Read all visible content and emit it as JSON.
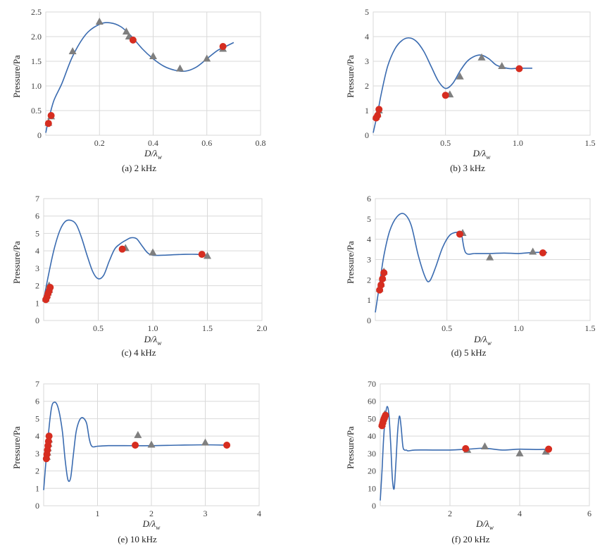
{
  "figure": {
    "colors": {
      "curve": "#3a6bb0",
      "circle": "#d62d20",
      "triangle": "#7f7f7f",
      "grid": "#d9d9d9"
    }
  },
  "chart_data": [
    {
      "type": "line",
      "caption": "(a) 2 kHz",
      "xlabel": "D/λ",
      "xlabel_sub": "w",
      "ylabel": "Pressure/Pa",
      "xlim": [
        0,
        0.8
      ],
      "ylim": [
        0,
        2.5
      ],
      "xticks": [
        0.2,
        0.4,
        0.6,
        0.8
      ],
      "xtick_labels": [
        "0.2",
        "0.4",
        "0.6",
        "0.8"
      ],
      "yticks": [
        0,
        0.5,
        1.0,
        1.5,
        2.0,
        2.5
      ],
      "ytick_labels": [
        "0",
        "0.5",
        "1.0",
        "1.5",
        "2.0",
        "2.5"
      ],
      "series": [
        {
          "name": "curve",
          "kind": "line",
          "x": [
            0,
            0.01,
            0.03,
            0.06,
            0.1,
            0.15,
            0.2,
            0.24,
            0.28,
            0.32,
            0.36,
            0.4,
            0.44,
            0.48,
            0.52,
            0.56,
            0.6,
            0.64,
            0.67,
            0.7
          ],
          "y": [
            0.05,
            0.3,
            0.7,
            1.05,
            1.6,
            2.05,
            2.25,
            2.28,
            2.2,
            2.0,
            1.75,
            1.55,
            1.4,
            1.32,
            1.3,
            1.38,
            1.55,
            1.72,
            1.8,
            1.88
          ]
        },
        {
          "name": "circle",
          "kind": "circle",
          "x": [
            0.01,
            0.02,
            0.325,
            0.66
          ],
          "y": [
            0.24,
            0.4,
            1.93,
            1.8
          ]
        },
        {
          "name": "triangle",
          "kind": "triangle",
          "x": [
            0.01,
            0.02,
            0.1,
            0.2,
            0.3,
            0.31,
            0.4,
            0.5,
            0.6,
            0.66
          ],
          "y": [
            0.25,
            0.38,
            1.7,
            2.3,
            2.1,
            2.0,
            1.6,
            1.35,
            1.55,
            1.75
          ]
        }
      ]
    },
    {
      "type": "line",
      "caption": "(b) 3 kHz",
      "xlabel": "D/λ",
      "xlabel_sub": "w",
      "ylabel": "Pressure/Pa",
      "xlim": [
        0,
        1.5
      ],
      "ylim": [
        0,
        5
      ],
      "xticks": [
        0.5,
        1.0,
        1.5
      ],
      "xtick_labels": [
        "0.5",
        "1.0",
        "1.5"
      ],
      "yticks": [
        0,
        1,
        2,
        3,
        4,
        5
      ],
      "ytick_labels": [
        "0",
        "1",
        "2",
        "3",
        "4",
        "5"
      ],
      "series": [
        {
          "name": "curve",
          "kind": "line",
          "x": [
            0,
            0.03,
            0.06,
            0.1,
            0.15,
            0.2,
            0.25,
            0.3,
            0.35,
            0.4,
            0.45,
            0.5,
            0.55,
            0.6,
            0.65,
            0.7,
            0.75,
            0.8,
            0.85,
            0.9,
            0.95,
            1.0,
            1.05,
            1.1
          ],
          "y": [
            0.1,
            0.9,
            1.8,
            2.8,
            3.5,
            3.85,
            3.95,
            3.8,
            3.4,
            2.8,
            2.2,
            1.9,
            2.1,
            2.6,
            3.0,
            3.2,
            3.25,
            3.1,
            2.85,
            2.75,
            2.7,
            2.72,
            2.72,
            2.72
          ]
        },
        {
          "name": "circle",
          "kind": "circle",
          "x": [
            0.02,
            0.03,
            0.04,
            0.5,
            1.01
          ],
          "y": [
            0.7,
            0.8,
            1.05,
            1.62,
            2.7
          ]
        },
        {
          "name": "triangle",
          "kind": "triangle",
          "x": [
            0.02,
            0.03,
            0.04,
            0.53,
            0.6,
            0.75,
            0.89
          ],
          "y": [
            0.75,
            0.85,
            1.0,
            1.65,
            2.38,
            3.15,
            2.8
          ]
        }
      ]
    },
    {
      "type": "line",
      "caption": "(c) 4 kHz",
      "xlabel": "D/λ",
      "xlabel_sub": "w",
      "ylabel": "Pressure/Pa",
      "xlim": [
        0,
        2.0
      ],
      "ylim": [
        0,
        7
      ],
      "xticks": [
        0.5,
        1.0,
        1.5,
        2.0
      ],
      "xtick_labels": [
        "0.5",
        "1.0",
        "1.5",
        "2.0"
      ],
      "yticks": [
        0,
        1,
        2,
        3,
        4,
        5,
        6,
        7
      ],
      "ytick_labels": [
        "0",
        "1",
        "2",
        "3",
        "4",
        "5",
        "6",
        "7"
      ],
      "series": [
        {
          "name": "curve",
          "kind": "line",
          "x": [
            0,
            0.05,
            0.1,
            0.15,
            0.2,
            0.25,
            0.3,
            0.35,
            0.4,
            0.45,
            0.5,
            0.55,
            0.6,
            0.65,
            0.7,
            0.75,
            0.8,
            0.85,
            0.9,
            0.95,
            1.0,
            1.1,
            1.2,
            1.3,
            1.4,
            1.5
          ],
          "y": [
            1.2,
            2.8,
            4.2,
            5.2,
            5.7,
            5.75,
            5.5,
            4.7,
            3.7,
            2.8,
            2.4,
            2.6,
            3.4,
            4.1,
            4.4,
            4.6,
            4.75,
            4.7,
            4.3,
            3.9,
            3.75,
            3.75,
            3.78,
            3.8,
            3.8,
            3.75
          ]
        },
        {
          "name": "circle",
          "kind": "circle",
          "x": [
            0.02,
            0.03,
            0.04,
            0.05,
            0.06,
            0.72,
            1.45
          ],
          "y": [
            1.2,
            1.35,
            1.55,
            1.7,
            1.9,
            4.1,
            3.8
          ]
        },
        {
          "name": "triangle",
          "kind": "triangle",
          "x": [
            0.02,
            0.03,
            0.04,
            0.05,
            0.05,
            0.75,
            1.0,
            1.5
          ],
          "y": [
            1.25,
            1.45,
            1.6,
            1.75,
            2.0,
            4.15,
            3.9,
            3.7
          ]
        }
      ]
    },
    {
      "type": "line",
      "caption": "(d) 5 kHz",
      "xlabel": "D/λ",
      "xlabel_sub": "w",
      "ylabel": "Pressure/Pa",
      "xlim": [
        0,
        1.5
      ],
      "ylim": [
        0,
        6
      ],
      "xticks": [
        0.5,
        1.0,
        1.5
      ],
      "xtick_labels": [
        "0.5",
        "1.0",
        "1.5"
      ],
      "yticks": [
        0,
        1,
        2,
        3,
        4,
        5,
        6
      ],
      "ytick_labels": [
        "0",
        "1",
        "2",
        "3",
        "4",
        "5",
        "6"
      ],
      "series": [
        {
          "name": "curve",
          "kind": "line",
          "x": [
            0,
            0.03,
            0.06,
            0.1,
            0.15,
            0.2,
            0.25,
            0.3,
            0.35,
            0.38,
            0.42,
            0.47,
            0.52,
            0.57,
            0.6,
            0.63,
            0.7,
            0.8,
            0.9,
            1.0,
            1.1,
            1.2
          ],
          "y": [
            0.4,
            1.8,
            3.2,
            4.4,
            5.1,
            5.25,
            4.7,
            3.2,
            2.1,
            1.95,
            2.6,
            3.6,
            4.2,
            4.35,
            4.3,
            3.35,
            3.3,
            3.3,
            3.32,
            3.3,
            3.35,
            3.35
          ]
        },
        {
          "name": "circle",
          "kind": "circle",
          "x": [
            0.03,
            0.04,
            0.05,
            0.06,
            0.59,
            1.17
          ],
          "y": [
            1.5,
            1.75,
            2.05,
            2.35,
            4.25,
            3.33
          ]
        },
        {
          "name": "triangle",
          "kind": "triangle",
          "x": [
            0.03,
            0.04,
            0.05,
            0.06,
            0.61,
            0.8,
            1.1
          ],
          "y": [
            1.55,
            1.8,
            2.1,
            2.4,
            4.3,
            3.1,
            3.38
          ]
        }
      ]
    },
    {
      "type": "line",
      "caption": "(e) 10 kHz",
      "xlabel": "D/λ",
      "xlabel_sub": "w",
      "ylabel": "Pressure/Pa",
      "xlim": [
        0,
        4
      ],
      "ylim": [
        0,
        7
      ],
      "xticks": [
        1,
        2,
        3,
        4
      ],
      "xtick_labels": [
        "1",
        "2",
        "3",
        "4"
      ],
      "yticks": [
        0,
        1,
        2,
        3,
        4,
        5,
        6,
        7
      ],
      "ytick_labels": [
        "0",
        "1",
        "2",
        "3",
        "4",
        "5",
        "6",
        "7"
      ],
      "series": [
        {
          "name": "curve",
          "kind": "line",
          "x": [
            0,
            0.05,
            0.1,
            0.15,
            0.2,
            0.25,
            0.3,
            0.35,
            0.4,
            0.45,
            0.5,
            0.55,
            0.6,
            0.65,
            0.7,
            0.75,
            0.8,
            0.85,
            0.9,
            1.0,
            1.2,
            1.5,
            2.0,
            2.5,
            3.0,
            3.4
          ],
          "y": [
            0.9,
            2.8,
            4.5,
            5.7,
            5.95,
            5.8,
            5.2,
            4.2,
            2.6,
            1.5,
            1.6,
            2.9,
            4.2,
            4.8,
            5.05,
            5.0,
            4.7,
            3.8,
            3.4,
            3.42,
            3.45,
            3.45,
            3.45,
            3.48,
            3.5,
            3.48
          ]
        },
        {
          "name": "circle",
          "kind": "circle",
          "x": [
            0.05,
            0.06,
            0.07,
            0.08,
            0.09,
            0.1,
            1.7,
            3.4
          ],
          "y": [
            2.7,
            2.95,
            3.2,
            3.45,
            3.7,
            4.0,
            3.48,
            3.48
          ]
        },
        {
          "name": "triangle",
          "kind": "triangle",
          "x": [
            0.06,
            0.07,
            0.08,
            0.09,
            0.1,
            1.75,
            2.0,
            3.0
          ],
          "y": [
            2.8,
            3.05,
            3.3,
            3.55,
            3.8,
            4.05,
            3.5,
            3.62
          ]
        }
      ]
    },
    {
      "type": "line",
      "caption": "(f) 20 kHz",
      "xlabel": "D/λ",
      "xlabel_sub": "w",
      "ylabel": "Pressure/Pa",
      "xlim": [
        0,
        6
      ],
      "ylim": [
        0,
        70
      ],
      "xticks": [
        2,
        4,
        6
      ],
      "xtick_labels": [
        "2",
        "4",
        "6"
      ],
      "yticks": [
        0,
        10,
        20,
        30,
        40,
        50,
        60,
        70
      ],
      "ytick_labels": [
        "0",
        "10",
        "20",
        "30",
        "40",
        "50",
        "60",
        "70"
      ],
      "series": [
        {
          "name": "curve",
          "kind": "line",
          "x": [
            0,
            0.05,
            0.1,
            0.15,
            0.2,
            0.25,
            0.3,
            0.35,
            0.4,
            0.45,
            0.5,
            0.55,
            0.6,
            0.65,
            0.7,
            0.75,
            0.8,
            1.0,
            1.5,
            2.0,
            2.5,
            3.0,
            3.5,
            4.0,
            4.5,
            4.85
          ],
          "y": [
            3.0,
            20.0,
            40.0,
            52.0,
            57.0,
            52.0,
            35.0,
            15.0,
            10.0,
            25.0,
            43.0,
            51.5,
            45.0,
            34.0,
            32.0,
            32.0,
            31.5,
            32.0,
            32.0,
            32.0,
            32.5,
            33.0,
            32.0,
            32.5,
            32.3,
            32.5
          ]
        },
        {
          "name": "circle",
          "kind": "circle",
          "x": [
            0.05,
            0.07,
            0.09,
            0.11,
            0.13,
            0.15,
            2.45,
            4.83
          ],
          "y": [
            46.0,
            47.5,
            49.0,
            50.0,
            51.0,
            52.0,
            32.8,
            32.5
          ]
        },
        {
          "name": "triangle",
          "kind": "triangle",
          "x": [
            0.05,
            0.07,
            0.09,
            0.11,
            0.13,
            2.5,
            3.0,
            4.0,
            4.75
          ],
          "y": [
            47.0,
            48.5,
            50.0,
            51.0,
            52.5,
            32.0,
            34.0,
            30.0,
            31.0
          ]
        }
      ]
    }
  ]
}
